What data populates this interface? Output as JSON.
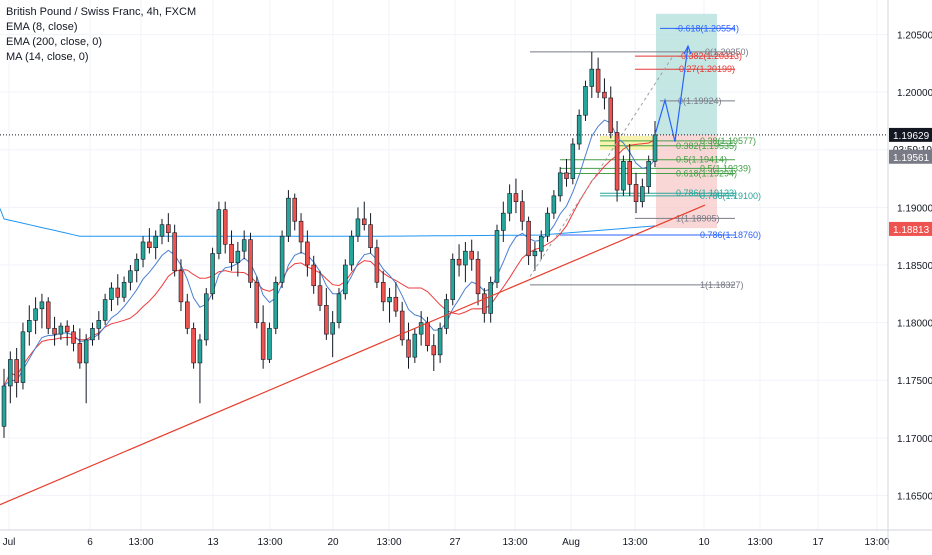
{
  "legend": {
    "title": "British Pound / Swiss Franc, 4h, FXCM",
    "ema8": "EMA (8, close)",
    "ema200": "EMA (200, close, 0)",
    "ma14": "MA (14, close, 0)"
  },
  "colors": {
    "up": "#26a69a",
    "down": "#ef5350",
    "wick": "#131722",
    "ema8": "#ef3b3b",
    "ema200": "#2196f3",
    "ma14": "#4a7fd0",
    "trendline": "#e83e2e",
    "fib": "#4caf50",
    "zone_green": "#b2dfdb",
    "zone_red": "#f8c6c6"
  },
  "chart_data": {
    "type": "candlestick",
    "symbol": "British Pound / Swiss Franc, 4h, FXCM",
    "y_range": [
      1.162,
      1.208
    ],
    "y_ticks": [
      "1.20500",
      "1.20000",
      "1.19500",
      "1.19000",
      "1.18500",
      "1.18000",
      "1.17500",
      "1.17000",
      "1.16500"
    ],
    "x_ticks": [
      "Jul",
      "6",
      "13:00",
      "13",
      "13:00",
      "20",
      "13:00",
      "27",
      "13:00",
      "Aug",
      "13:00",
      "10",
      "13:00",
      "17",
      "13:00"
    ],
    "price_labels": {
      "last": "1.19629",
      "countdown": "03:59:10",
      "bid": "1.19561",
      "trend": "1.18813"
    },
    "series": [
      {
        "name": "EMA (8, close)"
      },
      {
        "name": "EMA (200, close, 0)"
      },
      {
        "name": "MA (14, close, 0)"
      }
    ],
    "fib_labels": [
      {
        "text": "-0.618(1.20554)",
        "value": 1.20554,
        "color": "#2962ff"
      },
      {
        "text": "0(1.20350)",
        "value": 1.2035,
        "color": "#787b86"
      },
      {
        "text": "-0.382(1.20313)",
        "value": 1.20313,
        "color": "#e53935"
      },
      {
        "text": "-0.27(1.20199)",
        "value": 1.20199,
        "color": "#e53935"
      },
      {
        "text": "0(1.19924)",
        "value": 1.19924,
        "color": "#787b86"
      },
      {
        "text": "0.38(1.19577)",
        "value": 1.19577,
        "color": "#43a047"
      },
      {
        "text": "0.382(1.19535)",
        "value": 1.19535,
        "color": "#43a047"
      },
      {
        "text": "0.5(1.19414)",
        "value": 1.19414,
        "color": "#43a047"
      },
      {
        "text": "0.5(1.19339)",
        "value": 1.19339,
        "color": "#43a047"
      },
      {
        "text": "0.618(1.19294)",
        "value": 1.19294,
        "color": "#43a047"
      },
      {
        "text": "0.786(1.19123)",
        "value": 1.19123,
        "color": "#26a69a"
      },
      {
        "text": "0.786(1.19100)",
        "value": 1.191,
        "color": "#26a69a"
      },
      {
        "text": "1(1.18905)",
        "value": 1.18905,
        "color": "#787b86"
      },
      {
        "text": "0.786(1.18760)",
        "value": 1.1876,
        "color": "#2962ff"
      },
      {
        "text": "1(1.18327)",
        "value": 1.18327,
        "color": "#787b86"
      }
    ],
    "candles": [
      [
        1.171,
        1.176,
        1.17,
        1.1745
      ],
      [
        1.1745,
        1.1775,
        1.173,
        1.1768
      ],
      [
        1.1768,
        1.1778,
        1.1735,
        1.1748
      ],
      [
        1.1748,
        1.18,
        1.1742,
        1.1792
      ],
      [
        1.1792,
        1.1815,
        1.178,
        1.1802
      ],
      [
        1.1802,
        1.1822,
        1.179,
        1.1812
      ],
      [
        1.1812,
        1.1825,
        1.1795,
        1.1818
      ],
      [
        1.1818,
        1.1822,
        1.179,
        1.1795
      ],
      [
        1.1795,
        1.1805,
        1.178,
        1.179
      ],
      [
        1.179,
        1.18,
        1.1785,
        1.1797
      ],
      [
        1.1797,
        1.1802,
        1.178,
        1.1792
      ],
      [
        1.1792,
        1.1798,
        1.1775,
        1.1782
      ],
      [
        1.1782,
        1.1795,
        1.176,
        1.1765
      ],
      [
        1.1765,
        1.179,
        1.173,
        1.1785
      ],
      [
        1.1785,
        1.18,
        1.178,
        1.1795
      ],
      [
        1.1795,
        1.181,
        1.1785,
        1.1802
      ],
      [
        1.1802,
        1.1825,
        1.1798,
        1.182
      ],
      [
        1.182,
        1.1835,
        1.181,
        1.183
      ],
      [
        1.183,
        1.1842,
        1.1815,
        1.1822
      ],
      [
        1.1822,
        1.184,
        1.1818,
        1.1835
      ],
      [
        1.1835,
        1.185,
        1.1828,
        1.1845
      ],
      [
        1.1845,
        1.186,
        1.1835,
        1.1855
      ],
      [
        1.1855,
        1.1875,
        1.1848,
        1.187
      ],
      [
        1.187,
        1.1882,
        1.186,
        1.1865
      ],
      [
        1.1865,
        1.188,
        1.1855,
        1.1875
      ],
      [
        1.1875,
        1.189,
        1.1868,
        1.1885
      ],
      [
        1.1885,
        1.1895,
        1.187,
        1.1878
      ],
      [
        1.1878,
        1.1885,
        1.184,
        1.1845
      ],
      [
        1.1845,
        1.1855,
        1.181,
        1.1818
      ],
      [
        1.1818,
        1.1825,
        1.179,
        1.1795
      ],
      [
        1.1795,
        1.18,
        1.176,
        1.1765
      ],
      [
        1.1765,
        1.179,
        1.173,
        1.1785
      ],
      [
        1.1785,
        1.183,
        1.178,
        1.1825
      ],
      [
        1.1825,
        1.1865,
        1.182,
        1.186
      ],
      [
        1.186,
        1.1905,
        1.1855,
        1.1898
      ],
      [
        1.1898,
        1.1905,
        1.186,
        1.1868
      ],
      [
        1.1868,
        1.188,
        1.1845,
        1.1852
      ],
      [
        1.1852,
        1.187,
        1.184,
        1.1862
      ],
      [
        1.1862,
        1.188,
        1.1855,
        1.1872
      ],
      [
        1.1872,
        1.1878,
        1.183,
        1.1835
      ],
      [
        1.1835,
        1.184,
        1.1795,
        1.18
      ],
      [
        1.18,
        1.1815,
        1.176,
        1.1768
      ],
      [
        1.1768,
        1.18,
        1.1765,
        1.1795
      ],
      [
        1.1795,
        1.184,
        1.179,
        1.1835
      ],
      [
        1.1835,
        1.188,
        1.183,
        1.1875
      ],
      [
        1.1875,
        1.1915,
        1.187,
        1.1908
      ],
      [
        1.1908,
        1.1912,
        1.188,
        1.1888
      ],
      [
        1.1888,
        1.1895,
        1.186,
        1.187
      ],
      [
        1.187,
        1.188,
        1.184,
        1.185
      ],
      [
        1.185,
        1.1858,
        1.1825,
        1.1832
      ],
      [
        1.1832,
        1.1845,
        1.181,
        1.1815
      ],
      [
        1.1815,
        1.183,
        1.1785,
        1.179
      ],
      [
        1.179,
        1.181,
        1.177,
        1.18
      ],
      [
        1.18,
        1.183,
        1.1795,
        1.1825
      ],
      [
        1.1825,
        1.1855,
        1.182,
        1.185
      ],
      [
        1.185,
        1.188,
        1.1845,
        1.1875
      ],
      [
        1.1875,
        1.19,
        1.187,
        1.189
      ],
      [
        1.189,
        1.1905,
        1.188,
        1.1885
      ],
      [
        1.1885,
        1.1895,
        1.186,
        1.1865
      ],
      [
        1.1865,
        1.1872,
        1.183,
        1.1835
      ],
      [
        1.1835,
        1.1845,
        1.181,
        1.1818
      ],
      [
        1.1818,
        1.183,
        1.18,
        1.1822
      ],
      [
        1.1822,
        1.1835,
        1.1805,
        1.181
      ],
      [
        1.181,
        1.1818,
        1.178,
        1.1785
      ],
      [
        1.1785,
        1.18,
        1.176,
        1.177
      ],
      [
        1.177,
        1.1795,
        1.1765,
        1.179
      ],
      [
        1.179,
        1.181,
        1.178,
        1.18
      ],
      [
        1.18,
        1.1805,
        1.1775,
        1.178
      ],
      [
        1.178,
        1.179,
        1.1758,
        1.1772
      ],
      [
        1.1772,
        1.18,
        1.1765,
        1.1795
      ],
      [
        1.1795,
        1.1825,
        1.179,
        1.182
      ],
      [
        1.182,
        1.186,
        1.1815,
        1.1855
      ],
      [
        1.1855,
        1.1868,
        1.184,
        1.185
      ],
      [
        1.185,
        1.187,
        1.1835,
        1.1862
      ],
      [
        1.1862,
        1.1872,
        1.1845,
        1.1855
      ],
      [
        1.1855,
        1.1862,
        1.1815,
        1.1825
      ],
      [
        1.1825,
        1.183,
        1.18,
        1.1808
      ],
      [
        1.1808,
        1.184,
        1.18,
        1.1835
      ],
      [
        1.1835,
        1.1885,
        1.183,
        1.188
      ],
      [
        1.188,
        1.1905,
        1.187,
        1.1895
      ],
      [
        1.1895,
        1.192,
        1.1888,
        1.1912
      ],
      [
        1.1912,
        1.1925,
        1.1895,
        1.1905
      ],
      [
        1.1905,
        1.1915,
        1.188,
        1.1888
      ],
      [
        1.1888,
        1.1892,
        1.185,
        1.1858
      ],
      [
        1.1858,
        1.187,
        1.1845,
        1.1862
      ],
      [
        1.1862,
        1.188,
        1.1855,
        1.1875
      ],
      [
        1.1875,
        1.19,
        1.187,
        1.1895
      ],
      [
        1.1895,
        1.1915,
        1.189,
        1.191
      ],
      [
        1.191,
        1.1935,
        1.1905,
        1.193
      ],
      [
        1.193,
        1.1942,
        1.1918,
        1.1925
      ],
      [
        1.1925,
        1.196,
        1.192,
        1.1955
      ],
      [
        1.1955,
        1.1985,
        1.195,
        1.198
      ],
      [
        1.198,
        1.201,
        1.1975,
        1.2005
      ],
      [
        1.2005,
        1.2035,
        1.1995,
        1.202
      ],
      [
        1.202,
        1.203,
        1.1995,
        1.2
      ],
      [
        1.2,
        1.2012,
        1.1985,
        1.1995
      ],
      [
        1.1995,
        1.2005,
        1.196,
        1.1965
      ],
      [
        1.1965,
        1.1975,
        1.1905,
        1.1915
      ],
      [
        1.1915,
        1.1945,
        1.191,
        1.194
      ],
      [
        1.194,
        1.1955,
        1.191,
        1.192
      ],
      [
        1.192,
        1.193,
        1.1895,
        1.1905
      ],
      [
        1.1905,
        1.1925,
        1.19,
        1.1918
      ],
      [
        1.1918,
        1.1945,
        1.1912,
        1.194
      ],
      [
        1.194,
        1.1975,
        1.1935,
        1.1963
      ]
    ]
  }
}
